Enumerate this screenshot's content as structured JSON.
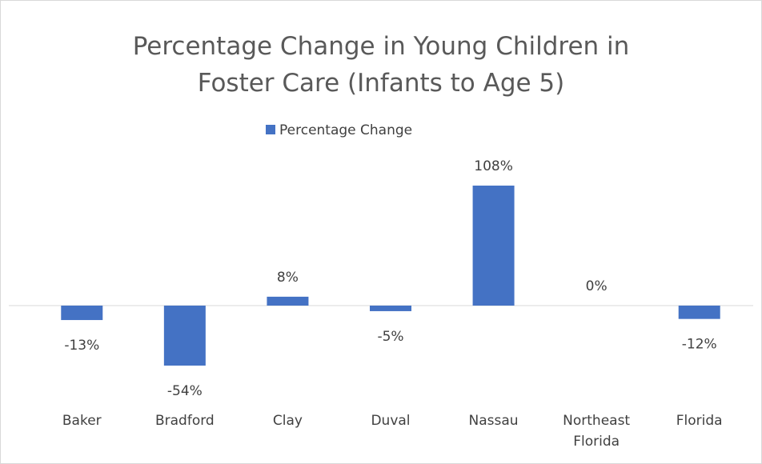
{
  "chart_data": {
    "type": "bar",
    "title": "Percentage Change in Young Children in Foster Care (Infants to Age 5)",
    "legend": "Percentage Change",
    "categories": [
      "Baker",
      "Bradford",
      "Clay",
      "Duval",
      "Nassau",
      "Northeast Florida",
      "Florida"
    ],
    "values": [
      -13,
      -54,
      8,
      -5,
      108,
      0,
      -12
    ],
    "value_labels": [
      "-13%",
      "-54%",
      "8%",
      "-5%",
      "108%",
      "0%",
      "-12%"
    ],
    "color": "#4472c4"
  }
}
